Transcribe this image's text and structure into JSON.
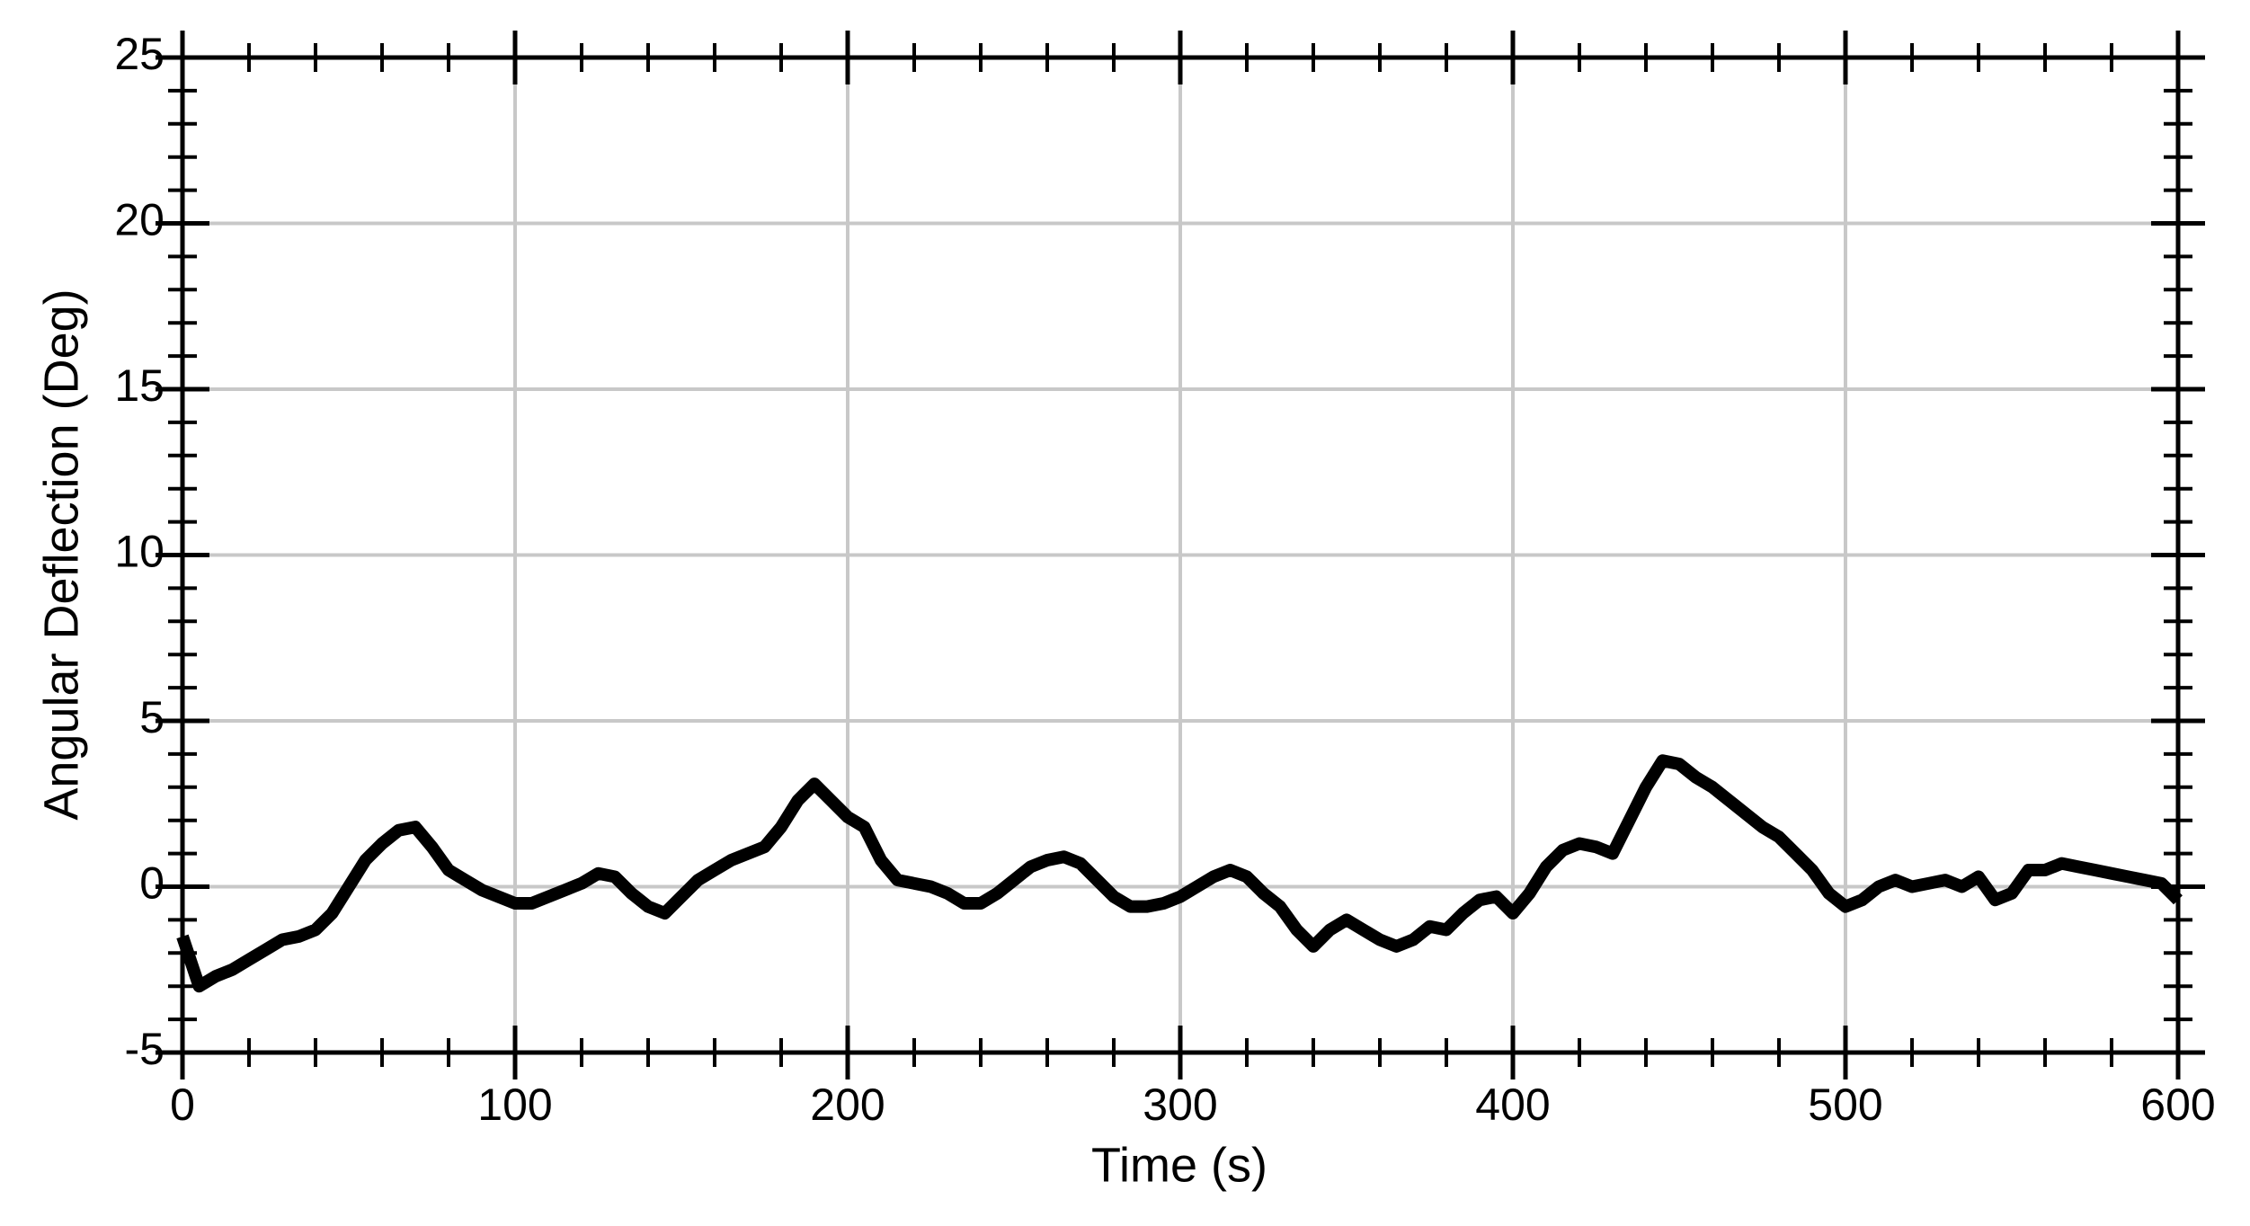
{
  "chart_data": {
    "type": "line",
    "xlabel": "Time (s)",
    "ylabel": "Angular Deflection (Deg)",
    "x": [
      0,
      5,
      10,
      15,
      20,
      25,
      30,
      35,
      40,
      45,
      50,
      55,
      60,
      65,
      70,
      75,
      80,
      85,
      90,
      95,
      100,
      105,
      110,
      115,
      120,
      125,
      130,
      135,
      140,
      145,
      150,
      155,
      160,
      165,
      170,
      175,
      180,
      185,
      190,
      195,
      200,
      205,
      210,
      215,
      220,
      225,
      230,
      235,
      240,
      245,
      250,
      255,
      260,
      265,
      270,
      275,
      280,
      285,
      290,
      295,
      300,
      305,
      310,
      315,
      320,
      325,
      330,
      335,
      340,
      345,
      350,
      355,
      360,
      365,
      370,
      375,
      380,
      385,
      390,
      395,
      400,
      405,
      410,
      415,
      420,
      425,
      430,
      435,
      440,
      445,
      450,
      455,
      460,
      465,
      470,
      475,
      480,
      485,
      490,
      495,
      500,
      505,
      510,
      515,
      520,
      525,
      530,
      535,
      540,
      545,
      550,
      555,
      560,
      565,
      570,
      575,
      580,
      585,
      590,
      595,
      600
    ],
    "series": [
      {
        "name": "Angular Deflection",
        "color": "#000000",
        "values": [
          -1.5,
          -3,
          -2.7,
          -2.5,
          -2.2,
          -1.9,
          -1.6,
          -1.5,
          -1.3,
          -0.8,
          0,
          0.8,
          1.3,
          1.7,
          1.8,
          1.2,
          0.5,
          0.2,
          -0.1,
          -0.3,
          -0.5,
          -0.5,
          -0.3,
          -0.1,
          0.1,
          0.4,
          0.3,
          -0.2,
          -0.6,
          -0.8,
          -0.3,
          0.2,
          0.5,
          0.8,
          1.0,
          1.2,
          1.8,
          2.6,
          3.1,
          2.6,
          2.1,
          1.8,
          0.8,
          0.2,
          0.1,
          0.0,
          -0.2,
          -0.5,
          -0.5,
          -0.2,
          0.2,
          0.6,
          0.8,
          0.9,
          0.7,
          0.2,
          -0.3,
          -0.6,
          -0.6,
          -0.5,
          -0.3,
          0.0,
          0.3,
          0.5,
          0.3,
          -0.2,
          -0.6,
          -1.3,
          -1.8,
          -1.3,
          -1.0,
          -1.3,
          -1.6,
          -1.8,
          -1.6,
          -1.2,
          -1.3,
          -0.8,
          -0.4,
          -0.3,
          -0.8,
          -0.2,
          0.6,
          1.1,
          1.3,
          1.2,
          1.0,
          2.0,
          3.0,
          3.8,
          3.7,
          3.3,
          3.0,
          2.6,
          2.2,
          1.8,
          1.5,
          1.0,
          0.5,
          -0.2,
          -0.6,
          -0.4,
          0.0,
          0.2,
          0.0,
          0.1,
          0.2,
          0.0,
          0.3,
          -0.4,
          -0.2,
          0.5,
          0.5,
          0.7,
          0.6,
          0.5,
          0.4,
          0.3,
          0.2,
          0.1,
          -0.4
        ]
      }
    ],
    "xlim": [
      0,
      600
    ],
    "xticks": [
      0,
      100,
      200,
      300,
      400,
      500,
      600
    ],
    "ylim": [
      -5,
      25
    ],
    "yticks": [
      -5,
      0,
      5,
      10,
      15,
      20,
      25
    ],
    "grid": true
  }
}
